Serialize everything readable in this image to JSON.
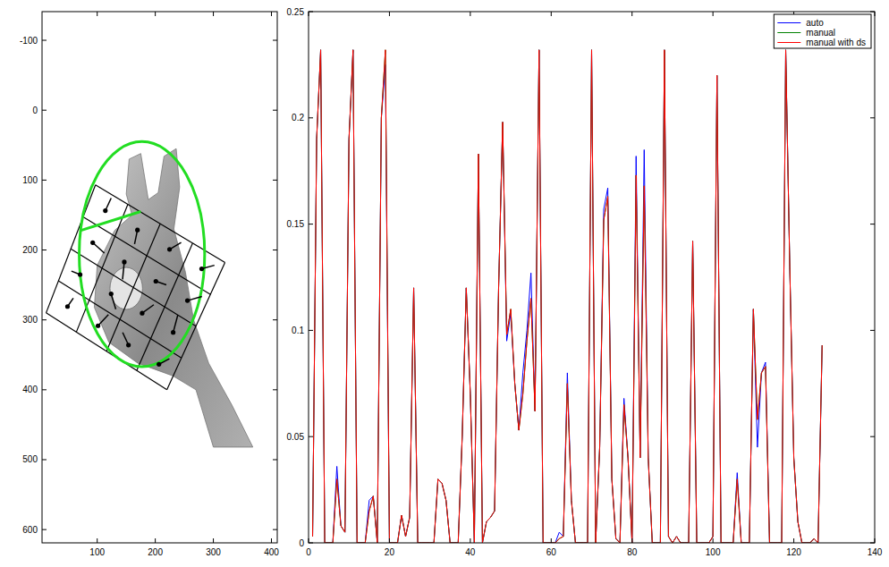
{
  "chart_data": [
    {
      "type": "image",
      "xlim": [
        5,
        410
      ],
      "ylim": [
        619,
        -141
      ],
      "xticks": [
        100,
        200,
        300,
        400
      ],
      "yticks": [
        -100,
        0,
        100,
        200,
        300,
        400,
        500,
        600
      ],
      "color": "#22dd22",
      "cell_grid": {
        "corners": [
          [
            97,
            107
          ],
          [
            320,
            218
          ],
          [
            220,
            400
          ],
          [
            12,
            290
          ]
        ],
        "cells": 4
      },
      "ellipse": {
        "center": [
          177,
          206
        ],
        "radii": [
          108,
          161
        ]
      },
      "segment": [
        [
          72,
          172
        ],
        [
          175,
          145
        ]
      ],
      "gradients": [
        [
          10,
          -18
        ],
        [
          -5,
          20
        ],
        [
          20,
          -10
        ],
        [
          22,
          -5
        ],
        [
          20,
          15
        ],
        [
          -3,
          25
        ],
        [
          18,
          5
        ],
        [
          25,
          -6
        ],
        [
          -15,
          -5
        ],
        [
          8,
          22
        ],
        [
          20,
          -12
        ],
        [
          8,
          -25
        ],
        [
          10,
          -12
        ],
        [
          18,
          -16
        ],
        [
          -10,
          -18
        ],
        [
          18,
          -8
        ]
      ]
    },
    {
      "type": "line",
      "xlim": [
        0,
        140
      ],
      "ylim": [
        0,
        0.25
      ],
      "xticks": [
        0,
        20,
        40,
        60,
        80,
        100,
        120,
        140
      ],
      "yticks": [
        0,
        0.05,
        0.1,
        0.15,
        0.2,
        0.25
      ],
      "legend": "upper right",
      "x": [
        1,
        2,
        3,
        4,
        5,
        6,
        7,
        8,
        9,
        10,
        11,
        12,
        13,
        14,
        15,
        16,
        17,
        18,
        19,
        20,
        21,
        22,
        23,
        24,
        25,
        26,
        27,
        28,
        29,
        30,
        31,
        32,
        33,
        34,
        35,
        36,
        37,
        38,
        39,
        40,
        41,
        42,
        43,
        44,
        45,
        46,
        47,
        48,
        49,
        50,
        51,
        52,
        53,
        54,
        55,
        56,
        57,
        58,
        59,
        60,
        61,
        62,
        63,
        64,
        65,
        66,
        67,
        68,
        69,
        70,
        71,
        72,
        73,
        74,
        75,
        76,
        77,
        78,
        79,
        80,
        81,
        82,
        83,
        84,
        85,
        86,
        87,
        88,
        89,
        90,
        91,
        92,
        93,
        94,
        95,
        96,
        97,
        98,
        99,
        100,
        101,
        102,
        103,
        104,
        105,
        106,
        107,
        108,
        109,
        110,
        111,
        112,
        113,
        114,
        115,
        116,
        117,
        118,
        119,
        120,
        121,
        122,
        123,
        124,
        125,
        126,
        127
      ],
      "series": [
        {
          "name": "auto",
          "color": "#0000ff",
          "values": [
            0.003,
            0.19,
            0.232,
            0,
            0,
            0,
            0.036,
            0.008,
            0.005,
            0.19,
            0.232,
            0,
            0,
            0,
            0.02,
            0.022,
            0,
            0.2,
            0.225,
            0,
            0,
            0,
            0.013,
            0.003,
            0.012,
            0.12,
            0,
            0,
            0,
            0,
            0,
            0.03,
            0.028,
            0.02,
            0,
            0,
            0,
            0.05,
            0.12,
            0.07,
            0,
            0.183,
            0,
            0.01,
            0.012,
            0.015,
            0.12,
            0.198,
            0.095,
            0.108,
            0.075,
            0.053,
            0.08,
            0.1,
            0.127,
            0.062,
            0.232,
            0,
            0,
            0,
            0,
            0.005,
            0.003,
            0.08,
            0.02,
            0,
            0,
            0,
            0,
            0.232,
            0,
            0.045,
            0.157,
            0.167,
            0.03,
            0.002,
            0,
            0.068,
            0.04,
            0,
            0.182,
            0.04,
            0.185,
            0.04,
            0,
            0,
            0,
            0.232,
            0.003,
            0,
            0.003,
            0,
            0,
            0,
            0.142,
            0,
            0,
            0,
            0,
            0.003,
            0.22,
            0,
            0,
            0,
            0,
            0.033,
            0,
            0,
            0,
            0.11,
            0.045,
            0.08,
            0.085,
            0,
            0,
            0,
            0,
            0.232,
            0.13,
            0.04,
            0.01,
            0,
            0,
            0,
            0.002,
            0,
            0.093
          ]
        },
        {
          "name": "manual",
          "color": "#008000",
          "values": [
            0.003,
            0.19,
            0.232,
            0,
            0,
            0,
            0.03,
            0.008,
            0.005,
            0.19,
            0.232,
            0,
            0,
            0,
            0.015,
            0.022,
            0,
            0.2,
            0.232,
            0,
            0,
            0,
            0.013,
            0.003,
            0.012,
            0.12,
            0,
            0,
            0,
            0,
            0,
            0.03,
            0.028,
            0.02,
            0,
            0,
            0,
            0.05,
            0.12,
            0.07,
            0,
            0.183,
            0,
            0.01,
            0.012,
            0.015,
            0.12,
            0.198,
            0.098,
            0.11,
            0.075,
            0.053,
            0.07,
            0.095,
            0.115,
            0.062,
            0.232,
            0,
            0,
            0,
            0,
            0.002,
            0.003,
            0.075,
            0.02,
            0,
            0,
            0,
            0,
            0.232,
            0,
            0.045,
            0.152,
            0.163,
            0.03,
            0.002,
            0,
            0.065,
            0.04,
            0,
            0.173,
            0.04,
            0.168,
            0.04,
            0,
            0,
            0,
            0.232,
            0.003,
            0,
            0.003,
            0,
            0,
            0,
            0.142,
            0,
            0,
            0,
            0,
            0.003,
            0.22,
            0,
            0,
            0,
            0,
            0.03,
            0,
            0,
            0,
            0.11,
            0.058,
            0.08,
            0.083,
            0,
            0,
            0,
            0,
            0.232,
            0.13,
            0.04,
            0.01,
            0,
            0,
            0,
            0.002,
            0,
            0.093
          ]
        },
        {
          "name": "manual with ds",
          "color": "#ff0000",
          "values": [
            0.003,
            0.19,
            0.232,
            0,
            0,
            0,
            0.03,
            0.008,
            0.005,
            0.19,
            0.232,
            0,
            0,
            0,
            0.015,
            0.022,
            0,
            0.2,
            0.232,
            0,
            0,
            0,
            0.013,
            0.003,
            0.012,
            0.12,
            0,
            0,
            0,
            0,
            0,
            0.03,
            0.028,
            0.02,
            0,
            0,
            0,
            0.05,
            0.12,
            0.07,
            0,
            0.183,
            0,
            0.01,
            0.012,
            0.015,
            0.12,
            0.198,
            0.098,
            0.11,
            0.075,
            0.053,
            0.07,
            0.095,
            0.115,
            0.062,
            0.232,
            0,
            0,
            0,
            0,
            0.002,
            0.003,
            0.075,
            0.02,
            0,
            0,
            0,
            0,
            0.232,
            0,
            0.045,
            0.152,
            0.163,
            0.03,
            0.002,
            0,
            0.065,
            0.04,
            0,
            0.173,
            0.04,
            0.168,
            0.04,
            0,
            0,
            0,
            0.232,
            0.003,
            0,
            0.003,
            0,
            0,
            0,
            0.142,
            0,
            0,
            0,
            0,
            0.003,
            0.22,
            0,
            0,
            0,
            0,
            0.03,
            0,
            0,
            0,
            0.11,
            0.058,
            0.08,
            0.083,
            0,
            0,
            0,
            0,
            0.232,
            0.13,
            0.04,
            0.01,
            0,
            0,
            0,
            0.002,
            0,
            0.093
          ]
        }
      ]
    }
  ]
}
